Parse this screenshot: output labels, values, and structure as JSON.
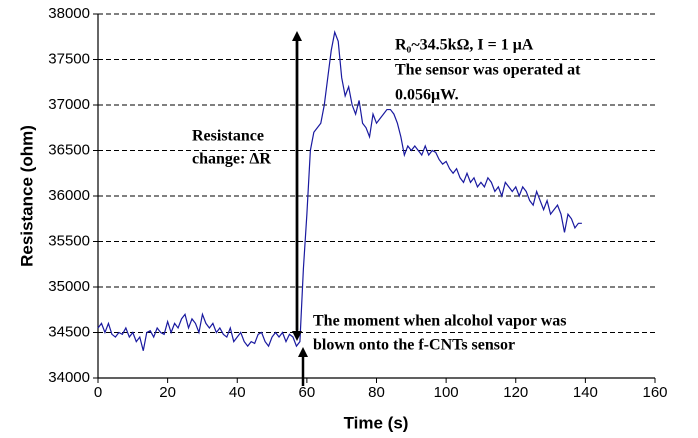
{
  "chart_data": {
    "type": "line",
    "xlabel": "Time (s)",
    "ylabel": "Resistance (ohm)",
    "annotations": [
      "R₀~34.5kΩ, I = 1 μA",
      "The sensor was operated at",
      "0.056μW.",
      "Resistance",
      "change:  ΔR",
      "The moment when alcohol vapor was",
      "blown onto the f-CNTs sensor"
    ],
    "xlim": [
      0,
      160
    ],
    "xticks": [
      0,
      20,
      40,
      60,
      80,
      100,
      120,
      140,
      160
    ],
    "ylim": [
      34000,
      38000
    ],
    "yticks": [
      34000,
      34500,
      35000,
      35500,
      36000,
      36500,
      37000,
      37500,
      38000
    ],
    "grid": true,
    "series": [
      {
        "color": "#1a1aa0",
        "x": [
          0,
          1,
          2,
          3,
          4,
          5,
          6,
          7,
          8,
          9,
          10,
          11,
          12,
          13,
          14,
          15,
          16,
          17,
          18,
          19,
          20,
          21,
          22,
          23,
          24,
          25,
          26,
          27,
          28,
          29,
          30,
          31,
          32,
          33,
          34,
          35,
          36,
          37,
          38,
          39,
          40,
          41,
          42,
          43,
          44,
          45,
          46,
          47,
          48,
          49,
          50,
          51,
          52,
          53,
          54,
          55,
          56,
          57,
          58,
          59,
          60,
          61,
          62,
          63,
          64,
          65,
          66,
          67,
          68,
          69,
          70,
          71,
          72,
          73,
          74,
          75,
          76,
          77,
          78,
          79,
          80,
          81,
          82,
          83,
          84,
          85,
          86,
          87,
          88,
          89,
          90,
          91,
          92,
          93,
          94,
          95,
          96,
          97,
          98,
          99,
          100,
          101,
          102,
          103,
          104,
          105,
          106,
          107,
          108,
          109,
          110,
          111,
          112,
          113,
          114,
          115,
          116,
          117,
          118,
          119,
          120,
          121,
          122,
          123,
          124,
          125,
          126,
          127,
          128,
          129,
          130,
          131,
          132,
          133,
          134,
          135,
          136,
          137,
          138,
          139
        ],
        "values": [
          34550,
          34600,
          34500,
          34600,
          34480,
          34450,
          34500,
          34480,
          34550,
          34450,
          34500,
          34400,
          34450,
          34300,
          34500,
          34520,
          34450,
          34550,
          34500,
          34480,
          34620,
          34500,
          34600,
          34550,
          34650,
          34700,
          34550,
          34650,
          34600,
          34500,
          34700,
          34600,
          34550,
          34600,
          34500,
          34550,
          34480,
          34450,
          34550,
          34400,
          34450,
          34500,
          34400,
          34350,
          34400,
          34380,
          34480,
          34500,
          34400,
          34350,
          34450,
          34500,
          34450,
          34500,
          34400,
          34480,
          34450,
          34350,
          34400,
          35200,
          35800,
          36500,
          36700,
          36750,
          36800,
          37000,
          37300,
          37600,
          37800,
          37700,
          37300,
          37100,
          37200,
          37000,
          36900,
          37050,
          36800,
          36750,
          36650,
          36900,
          36800,
          36850,
          36900,
          36950,
          36950,
          36900,
          36800,
          36650,
          36450,
          36550,
          36500,
          36550,
          36500,
          36450,
          36550,
          36450,
          36500,
          36480,
          36400,
          36350,
          36380,
          36300,
          36250,
          36300,
          36200,
          36150,
          36250,
          36150,
          36200,
          36100,
          36150,
          36100,
          36200,
          36150,
          36050,
          36100,
          36000,
          36150,
          36100,
          36050,
          36100,
          36000,
          36100,
          36050,
          35950,
          35900,
          36050,
          35950,
          35850,
          35950,
          35800,
          35850,
          35900,
          35800,
          35600,
          35800,
          35750,
          35650,
          35700,
          35700
        ]
      }
    ]
  }
}
